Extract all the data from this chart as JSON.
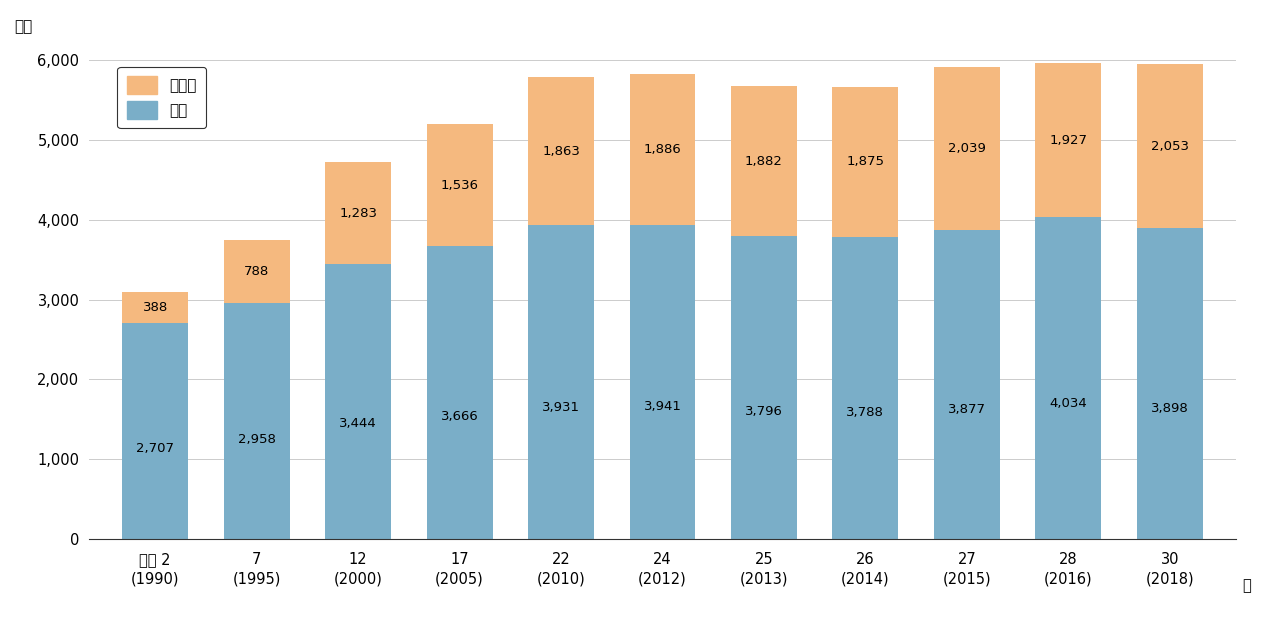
{
  "categories_line1": [
    "平成 2",
    "7",
    "12",
    "17",
    "22",
    "24",
    "25",
    "26",
    "27",
    "28",
    "30"
  ],
  "categories_line2": [
    "(1990)",
    "(1995)",
    "(2000)",
    "(2005)",
    "(2010)",
    "(2012)",
    "(2013)",
    "(2014)",
    "(2015)",
    "(2016)",
    "(2018)"
  ],
  "fishery": [
    2707,
    2958,
    3444,
    3666,
    3931,
    3941,
    3796,
    3788,
    3877,
    4034,
    3898
  ],
  "aquaculture": [
    388,
    788,
    1283,
    1536,
    1863,
    1886,
    1882,
    1875,
    2039,
    1927,
    2053
  ],
  "fishery_color": "#7aaec8",
  "aquaculture_color": "#f5b97f",
  "ylabel": "万人",
  "ylim": [
    0,
    6200
  ],
  "yticks": [
    0,
    1000,
    2000,
    3000,
    4000,
    5000,
    6000
  ],
  "legend_fishery": "漁業",
  "legend_aquaculture": "養殖業",
  "bar_width": 0.65,
  "year_suffix": "年",
  "background_color": "#ffffff",
  "grid_color": "#cccccc",
  "spine_color": "#333333"
}
